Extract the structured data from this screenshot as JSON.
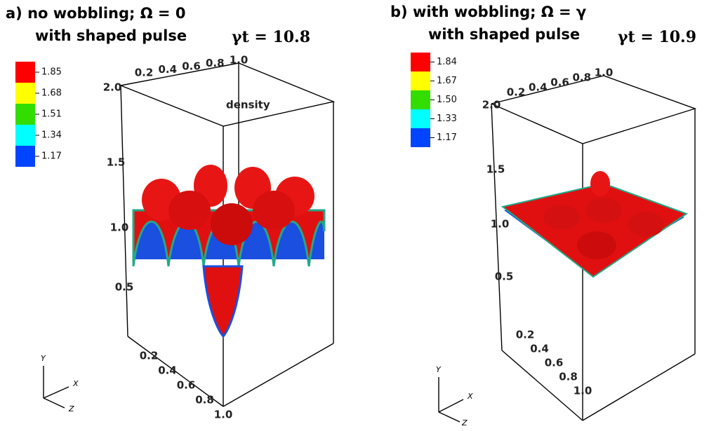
{
  "panels": [
    {
      "title": "a) no wobbling; Ω = 0",
      "subtitle": "with shaped pulse",
      "time": "γt = 10.8",
      "quantity": "density",
      "legend": [
        {
          "label": "1.85",
          "color": "#ff0000"
        },
        {
          "label": "1.68",
          "color": "#ffff00"
        },
        {
          "label": "1.51",
          "color": "#33dd00"
        },
        {
          "label": "1.34",
          "color": "#00ffff"
        },
        {
          "label": "1.17",
          "color": "#0044ff"
        }
      ],
      "top_ticks": [
        "0.2",
        "0.4",
        "0.6",
        "0.8",
        "1.0"
      ],
      "y_ticks": [
        "2.0",
        "1.5",
        "1.0",
        "0.5"
      ],
      "z_ticks": [
        "0.2",
        "0.4",
        "0.6",
        "0.8",
        "1.0"
      ],
      "triad": [
        "Y",
        "X",
        "Z"
      ]
    },
    {
      "title": "b) with wobbling; Ω = γ",
      "subtitle": "with shaped pulse",
      "time": "γt = 10.9",
      "legend": [
        {
          "label": "1.84",
          "color": "#ff0000"
        },
        {
          "label": "1.67",
          "color": "#ffff00"
        },
        {
          "label": "1.50",
          "color": "#33dd00"
        },
        {
          "label": "1.33",
          "color": "#00ffff"
        },
        {
          "label": "1.17",
          "color": "#0044ff"
        }
      ],
      "top_ticks": [
        "0.2",
        "0.4",
        "0.6",
        "0.8",
        "1.0"
      ],
      "y_ticks": [
        "2.0",
        "1.5",
        "1.0",
        "0.5"
      ],
      "z_ticks": [
        "0.2",
        "0.4",
        "0.6",
        "0.8",
        "1.0"
      ],
      "triad": [
        "Y",
        "X",
        "Z"
      ]
    }
  ]
}
